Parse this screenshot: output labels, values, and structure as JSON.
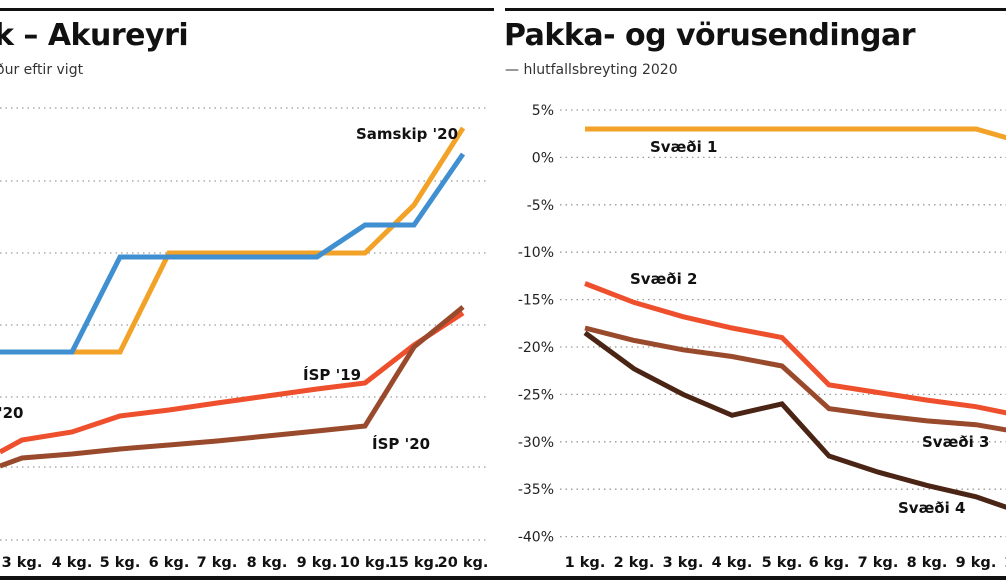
{
  "left_panel": {
    "title": "k – Akureyri",
    "subtitle": "ður eftir vigt"
  },
  "right_panel": {
    "title": "Pakka- og vörusendingar",
    "subtitle": "— hlutfallsbreyting 2020"
  },
  "colors": {
    "orange": "#f2a227",
    "blue": "#3f8fd1",
    "red": "#ee4f2c",
    "brown": "#9a4a2c",
    "darkbrown": "#4a2414"
  },
  "chart_data": [
    {
      "type": "line",
      "title": "k – Akureyri",
      "subtitle": "ður eftir vigt",
      "x": [
        "3 kg.",
        "4 kg.",
        "5 kg.",
        "6 kg.",
        "7 kg.",
        "8 kg.",
        "9 kg.",
        "10 kg.",
        "15 kg.",
        "20 kg."
      ],
      "x_label_positions_note": "",
      "grid": true,
      "series": [
        {
          "name": "Samskip '20",
          "color": "#f2a227",
          "values": [
            352,
            352,
            352,
            253,
            253,
            253,
            253,
            253,
            205,
            128
          ]
        },
        {
          "name": "",
          "color": "#3f8fd1",
          "values": [
            352,
            352,
            257,
            257,
            257,
            257,
            257,
            225,
            225,
            154
          ]
        },
        {
          "name": "ÍSP '19",
          "color": "#ee4f2c",
          "values": [
            440,
            432,
            416,
            410,
            403,
            396,
            389,
            383,
            345,
            313
          ]
        },
        {
          "name": "ÍSP '20",
          "color": "#9a4a2c",
          "values": [
            458,
            454,
            449,
            445,
            441,
            436,
            431,
            426,
            347,
            307
          ]
        }
      ],
      "labels": [
        "Samskip '20",
        "ÍSP '19",
        "ÍSP '20",
        "'20"
      ]
    },
    {
      "type": "line",
      "title": "Pakka- og vörusendingar",
      "subtitle": "— hlutfallsbreyting 2020",
      "x": [
        "1 kg.",
        "2 kg.",
        "3 kg.",
        "4 kg.",
        "5 kg.",
        "6 kg.",
        "7 kg.",
        "8 kg.",
        "9 kg.",
        "1"
      ],
      "yticks": [
        "5%",
        "0%",
        "-5%",
        "-10%",
        "-15%",
        "-20%",
        "-25%",
        "-30%",
        "-35%",
        "-40%"
      ],
      "ylim": [
        -40,
        5
      ],
      "grid": true,
      "series": [
        {
          "name": "Svæði 1",
          "color": "#f2a227",
          "values": [
            3.0,
            3.0,
            3.0,
            3.0,
            3.0,
            3.0,
            3.0,
            3.0,
            3.0,
            2.0
          ]
        },
        {
          "name": "Svæði 2",
          "color": "#ee4f2c",
          "values": [
            -13.3,
            -15.3,
            -16.8,
            -18.0,
            -19.0,
            -24.0,
            -24.8,
            -25.6,
            -26.3,
            -27.0
          ]
        },
        {
          "name": "Svæði 3",
          "color": "#9a4a2c",
          "values": [
            -18.0,
            -19.3,
            -20.3,
            -21.0,
            -22.0,
            -26.5,
            -27.2,
            -27.8,
            -28.2,
            -28.8
          ]
        },
        {
          "name": "Svæði 4",
          "color": "#4a2414",
          "values": [
            -18.5,
            -22.3,
            -25.0,
            -27.2,
            -26.0,
            -31.5,
            -33.2,
            -34.6,
            -35.8,
            -37.0
          ]
        }
      ]
    }
  ]
}
